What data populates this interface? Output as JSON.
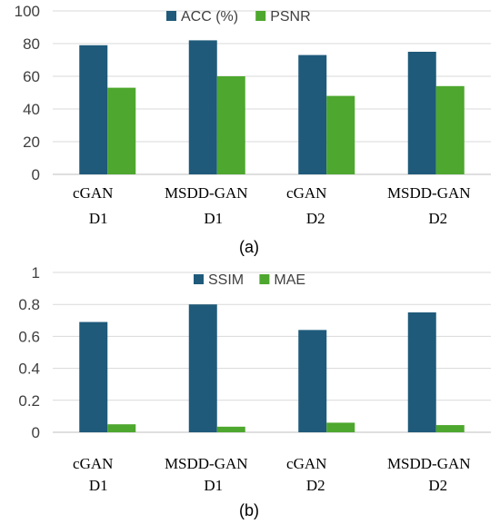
{
  "colors": {
    "series_a": "#1f5a7a",
    "series_b": "#4ea72e"
  },
  "chart_data": [
    {
      "type": "bar",
      "caption": "(a)",
      "categories": [
        [
          "cGAN",
          "D1"
        ],
        [
          "MSDD-GAN",
          "D1"
        ],
        [
          "cGAN",
          "D2"
        ],
        [
          "MSDD-GAN",
          "D2"
        ]
      ],
      "series": [
        {
          "name": "ACC (%)",
          "values": [
            79,
            82,
            73,
            75
          ]
        },
        {
          "name": "PSNR",
          "values": [
            53,
            60,
            48,
            54
          ]
        }
      ],
      "yticks": [
        "0",
        "20",
        "40",
        "60",
        "80",
        "100"
      ],
      "ylim": [
        0,
        100
      ],
      "legend": "top",
      "grid": true
    },
    {
      "type": "bar",
      "caption": "(b)",
      "categories": [
        [
          "cGAN",
          "D1"
        ],
        [
          "MSDD-GAN",
          "D1"
        ],
        [
          "cGAN",
          "D2"
        ],
        [
          "MSDD-GAN",
          "D2"
        ]
      ],
      "series": [
        {
          "name": "SSIM",
          "values": [
            0.69,
            0.8,
            0.64,
            0.75
          ]
        },
        {
          "name": "MAE",
          "values": [
            0.05,
            0.035,
            0.06,
            0.045
          ]
        }
      ],
      "yticks": [
        "0",
        "0.2",
        "0.4",
        "0.6",
        "0.8",
        "1"
      ],
      "ylim": [
        0,
        1
      ],
      "legend": "top",
      "grid": true
    }
  ]
}
